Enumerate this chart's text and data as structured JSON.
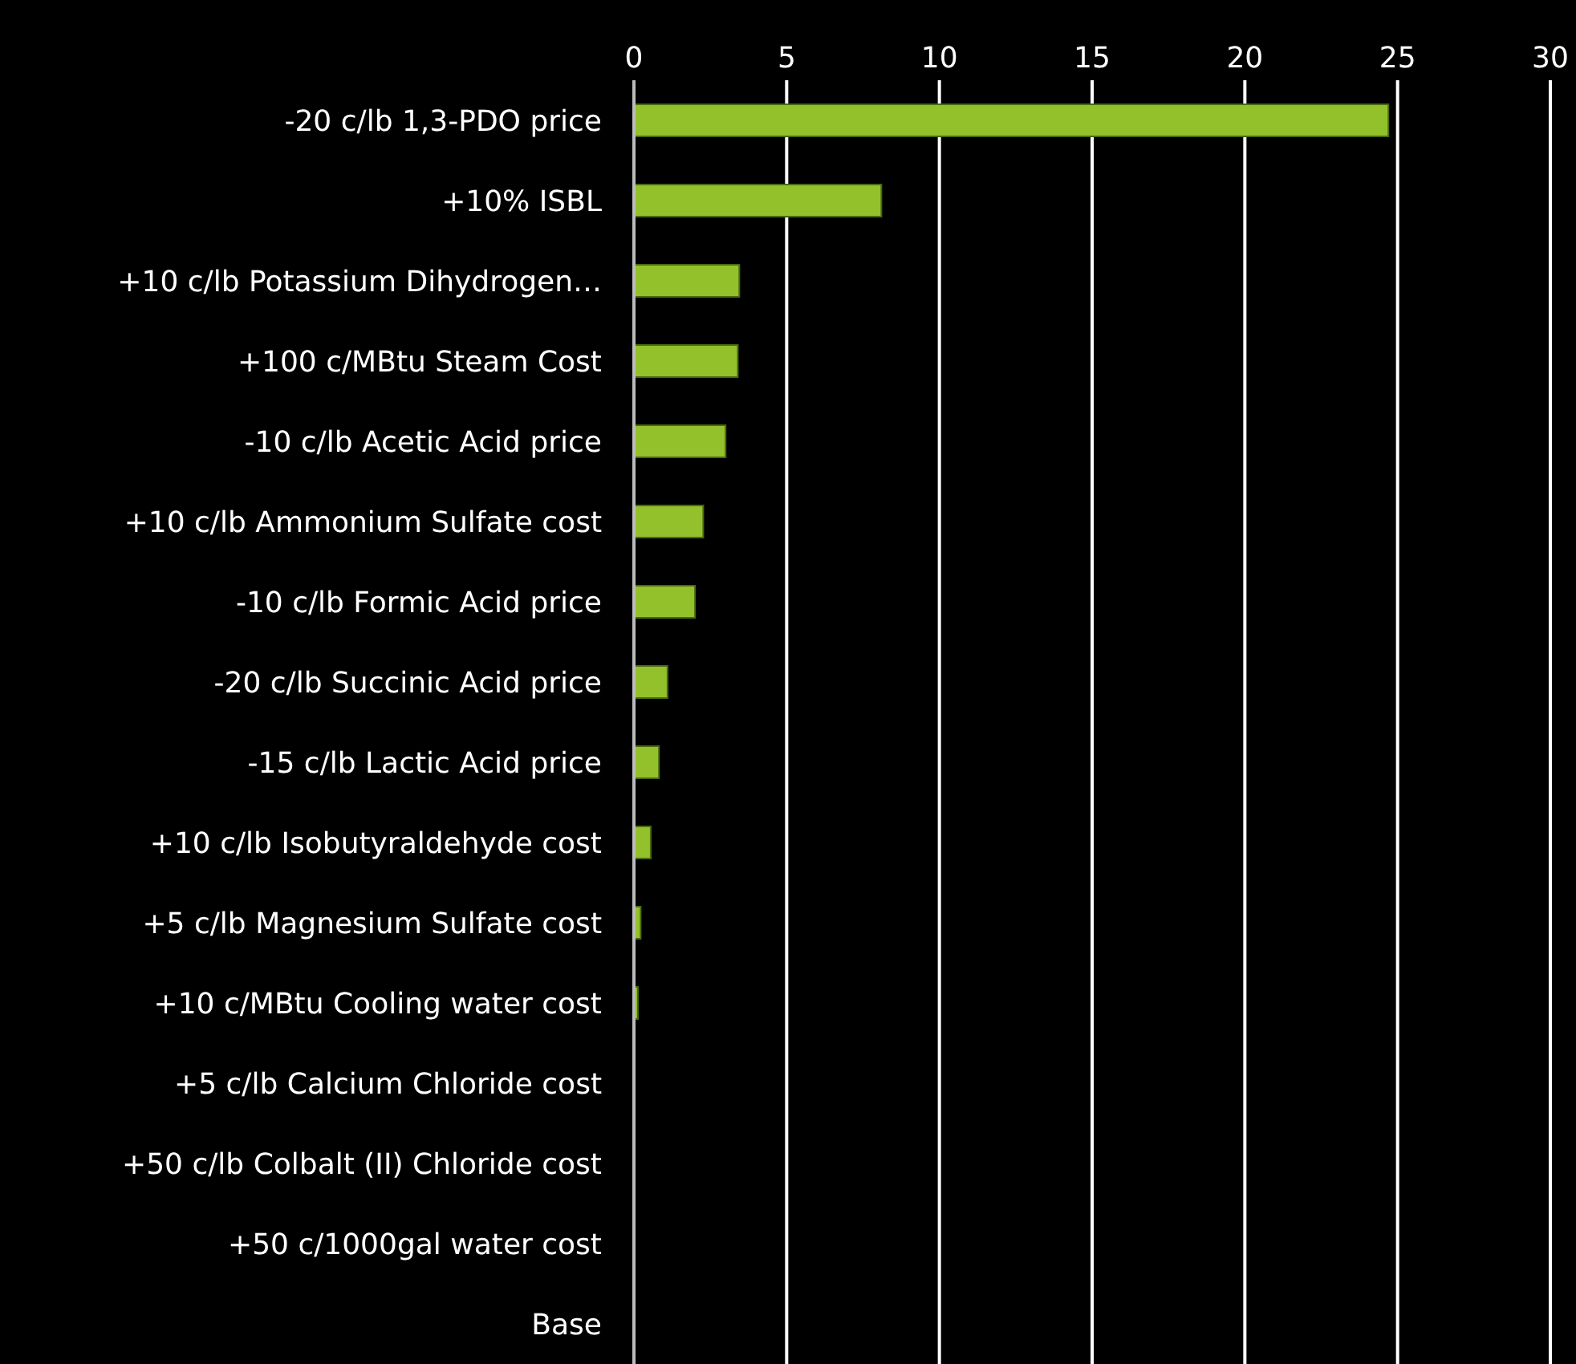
{
  "chart_data": {
    "type": "bar",
    "orientation": "horizontal",
    "categories": [
      "-20 c/lb 1,3-PDO price",
      "+10% ISBL",
      "+10 c/lb Potassium Dihydrogen…",
      "+100 c/MBtu Steam Cost",
      "-10 c/lb Acetic Acid price",
      "+10 c/lb Ammonium Sulfate cost",
      "-10 c/lb Formic Acid price",
      "-20 c/lb Succinic Acid price",
      "-15 c/lb Lactic Acid price",
      "+10 c/lb Isobutyraldehyde cost",
      "+5 c/lb Magnesium Sulfate cost",
      "+10 c/MBtu Cooling water cost",
      "+5 c/lb Calcium Chloride cost",
      "+50 c/lb Colbalt (II) Chloride cost",
      "+50 c/1000gal water cost",
      "Base"
    ],
    "values": [
      24.7,
      8.1,
      3.45,
      3.4,
      3.0,
      2.27,
      2.0,
      1.1,
      0.82,
      0.55,
      0.22,
      0.13,
      0,
      0,
      0,
      0
    ],
    "color": "#93c12b",
    "xlim": [
      0,
      30
    ],
    "xticks": [
      0,
      5,
      10,
      15,
      20,
      25,
      30
    ],
    "grid": "x"
  }
}
